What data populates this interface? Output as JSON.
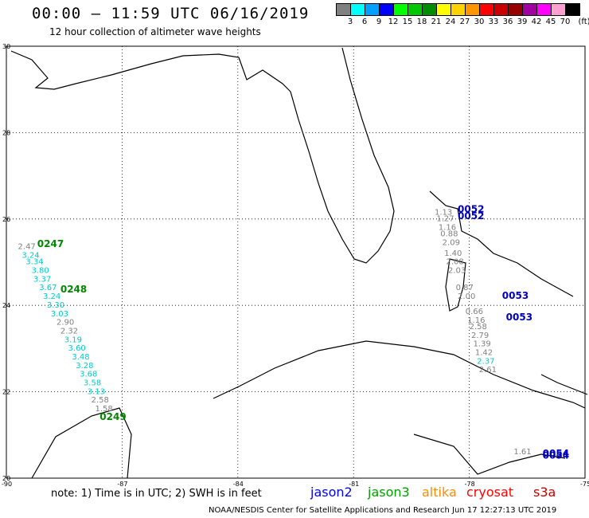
{
  "header": {
    "title": "00:00 – 11:59 UTC 06/16/2019",
    "subtitle": "12 hour collection of altimeter wave heights"
  },
  "legend": {
    "swatches": [
      {
        "color": "#808080",
        "label": "3"
      },
      {
        "color": "#00ffff",
        "label": "6"
      },
      {
        "color": "#00a0ff",
        "label": "9"
      },
      {
        "color": "#0000ff",
        "label": "12"
      },
      {
        "color": "#00ff00",
        "label": "15"
      },
      {
        "color": "#00c800",
        "label": "18"
      },
      {
        "color": "#008c00",
        "label": "21"
      },
      {
        "color": "#ffff00",
        "label": "24"
      },
      {
        "color": "#ffd200",
        "label": "27"
      },
      {
        "color": "#ff9600",
        "label": "30"
      },
      {
        "color": "#ff0000",
        "label": "33"
      },
      {
        "color": "#c80000",
        "label": "36"
      },
      {
        "color": "#960000",
        "label": "39"
      },
      {
        "color": "#a000a0",
        "label": "42"
      },
      {
        "color": "#ff00ff",
        "label": "45"
      },
      {
        "color": "#ffa0d0",
        "label": "70"
      },
      {
        "color": "#000000",
        "label": ""
      }
    ],
    "unit": "(ft)"
  },
  "axes": {
    "lat_labels": [
      "30",
      "28",
      "26",
      "24",
      "22",
      "20"
    ],
    "lon_labels": [
      "-90",
      "-87",
      "-84",
      "-81",
      "-78",
      "-75"
    ]
  },
  "passes": [
    {
      "label": "0052",
      "color": "#0000c0",
      "lon": -78.3,
      "lat": 26.15
    },
    {
      "label": "0052",
      "color": "#0000c0",
      "lon": -78.3,
      "lat": 26.0
    },
    {
      "label": "0247",
      "color": "#008800",
      "lon": -89.2,
      "lat": 25.35
    },
    {
      "label": "0248",
      "color": "#008800",
      "lon": -88.6,
      "lat": 24.3
    },
    {
      "label": "0053",
      "color": "#0000c0",
      "lon": -77.15,
      "lat": 24.15
    },
    {
      "label": "0053",
      "color": "#0000c0",
      "lon": -77.05,
      "lat": 23.65
    },
    {
      "label": "0249",
      "color": "#008800",
      "lon": -87.58,
      "lat": 21.35
    },
    {
      "label": "0054",
      "color": "#0000c0",
      "lon": -76.1,
      "lat": 20.5
    },
    {
      "label": "0054",
      "color": "#0000c0",
      "lon": -76.1,
      "lat": 20.45
    }
  ],
  "tracks": [
    {
      "name": "jason3-west",
      "points": [
        {
          "lon": -89.7,
          "lat": 25.3,
          "v": "2.47",
          "c": "#808080"
        },
        {
          "lon": -89.6,
          "lat": 25.1,
          "v": "3.24",
          "c": "#00cccc"
        },
        {
          "lon": -89.5,
          "lat": 24.95,
          "v": "3.34",
          "c": "#00cccc"
        },
        {
          "lon": -89.35,
          "lat": 24.75,
          "v": "3.80",
          "c": "#00cccc"
        },
        {
          "lon": -89.3,
          "lat": 24.55,
          "v": "3.37",
          "c": "#00cccc"
        },
        {
          "lon": -89.15,
          "lat": 24.35,
          "v": "3.67",
          "c": "#00cccc"
        },
        {
          "lon": -89.05,
          "lat": 24.15,
          "v": "3.24",
          "c": "#00cccc"
        },
        {
          "lon": -88.95,
          "lat": 23.95,
          "v": "3.30",
          "c": "#00cccc"
        },
        {
          "lon": -88.85,
          "lat": 23.75,
          "v": "3.03",
          "c": "#00cccc"
        },
        {
          "lon": -88.7,
          "lat": 23.55,
          "v": "2.90",
          "c": "#808080"
        },
        {
          "lon": -88.6,
          "lat": 23.35,
          "v": "2.32",
          "c": "#808080"
        },
        {
          "lon": -88.5,
          "lat": 23.15,
          "v": "3.19",
          "c": "#00cccc"
        },
        {
          "lon": -88.4,
          "lat": 22.95,
          "v": "3.60",
          "c": "#00cccc"
        },
        {
          "lon": -88.3,
          "lat": 22.75,
          "v": "3.48",
          "c": "#00cccc"
        },
        {
          "lon": -88.2,
          "lat": 22.55,
          "v": "3.28",
          "c": "#00cccc"
        },
        {
          "lon": -88.1,
          "lat": 22.35,
          "v": "3.68",
          "c": "#00cccc"
        },
        {
          "lon": -88.0,
          "lat": 22.15,
          "v": "3.58",
          "c": "#00cccc"
        },
        {
          "lon": -87.9,
          "lat": 21.95,
          "v": "3.13",
          "c": "#00cccc"
        },
        {
          "lon": -87.8,
          "lat": 21.75,
          "v": "2.58",
          "c": "#808080"
        },
        {
          "lon": -87.7,
          "lat": 21.55,
          "v": "1.58",
          "c": "#808080"
        }
      ]
    },
    {
      "name": "jason2-east",
      "points": [
        {
          "lon": -78.9,
          "lat": 26.1,
          "v": "1.13",
          "c": "#808080"
        },
        {
          "lon": -78.85,
          "lat": 25.95,
          "v": "1.27",
          "c": "#808080"
        },
        {
          "lon": -78.8,
          "lat": 25.75,
          "v": "1.16",
          "c": "#808080"
        },
        {
          "lon": -78.75,
          "lat": 25.6,
          "v": "0.88",
          "c": "#808080"
        },
        {
          "lon": -78.7,
          "lat": 25.4,
          "v": "2.09",
          "c": "#808080"
        },
        {
          "lon": -78.65,
          "lat": 25.15,
          "v": "1.40",
          "c": "#808080"
        },
        {
          "lon": -78.6,
          "lat": 24.95,
          "v": "2.08",
          "c": "#808080"
        },
        {
          "lon": -78.55,
          "lat": 24.75,
          "v": "2.03",
          "c": "#808080"
        },
        {
          "lon": -78.35,
          "lat": 24.35,
          "v": "0.87",
          "c": "#808080"
        },
        {
          "lon": -78.3,
          "lat": 24.15,
          "v": "2.00",
          "c": "#808080"
        },
        {
          "lon": -78.1,
          "lat": 23.8,
          "v": "0.66",
          "c": "#808080"
        },
        {
          "lon": -78.05,
          "lat": 23.6,
          "v": "1.16",
          "c": "#808080"
        },
        {
          "lon": -78.0,
          "lat": 23.45,
          "v": "2.58",
          "c": "#808080"
        },
        {
          "lon": -77.95,
          "lat": 23.25,
          "v": "2.79",
          "c": "#808080"
        },
        {
          "lon": -77.9,
          "lat": 23.05,
          "v": "1.39",
          "c": "#808080"
        },
        {
          "lon": -77.85,
          "lat": 22.85,
          "v": "1.42",
          "c": "#808080"
        },
        {
          "lon": -77.8,
          "lat": 22.65,
          "v": "2.37",
          "c": "#00cccc"
        },
        {
          "lon": -77.75,
          "lat": 22.45,
          "v": "2.61",
          "c": "#808080"
        },
        {
          "lon": -76.85,
          "lat": 20.55,
          "v": "1.61",
          "c": "#808080"
        }
      ]
    }
  ],
  "note": "note: 1) Time is in UTC; 2) SWH is in feet",
  "satellites": [
    {
      "name": "jason2",
      "color": "#0000ff"
    },
    {
      "name": "jason3",
      "color": "#00a000"
    },
    {
      "name": "altika",
      "color": "#ff8c00"
    },
    {
      "name": "cryosat",
      "color": "#ff0000"
    },
    {
      "name": "s3a",
      "color": "#c80000"
    }
  ],
  "footer": "NOAA/NESDIS Center for Satellite Applications and Research     Jun 17 12:27:13 UTC 2019"
}
